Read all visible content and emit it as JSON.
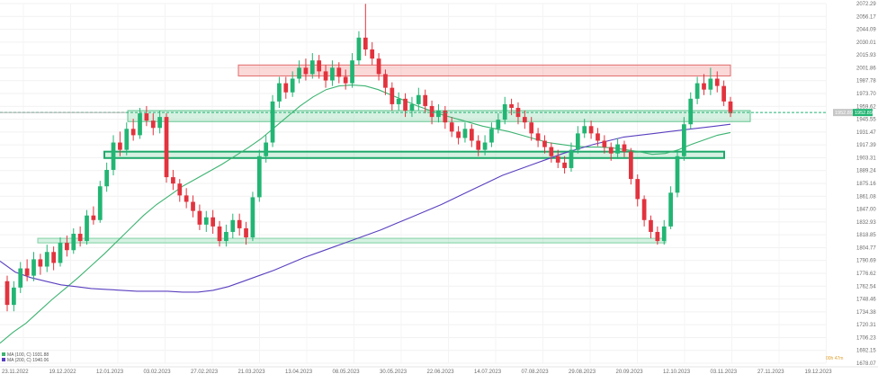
{
  "chart_data": {
    "type": "candlestick",
    "instrument_note": "",
    "y_axis": {
      "labels": [
        "2072.29",
        "2056.17",
        "2044.09",
        "2030.01",
        "2015.93",
        "2001.86",
        "1987.78",
        "1973.70",
        "1959.62",
        "1945.55",
        "1931.47",
        "1917.39",
        "1903.31",
        "1889.24",
        "1875.16",
        "1861.08",
        "1847.00",
        "1832.93",
        "1818.85",
        "1804.77",
        "1790.69",
        "1776.62",
        "1762.54",
        "1748.46",
        "1734.38",
        "1720.31",
        "1706.23",
        "1692.15",
        "1678.07"
      ],
      "min": 1678.07,
      "max": 2072.29
    },
    "x_axis": {
      "labels": [
        "23.11.2022",
        "19.12.2022",
        "12.01.2023",
        "03.02.2023",
        "27.02.2023",
        "21.03.2023",
        "13.04.2023",
        "08.05.2023",
        "30.05.2023",
        "22.06.2023",
        "14.07.2023",
        "07.08.2023",
        "29.08.2023",
        "20.09.2023",
        "12.10.2023",
        "03.11.2023",
        "27.11.2023",
        "19.12.2023"
      ]
    },
    "current_price_label": "1952.89",
    "last_line_label": "1952.89",
    "time_left_label": "00h 47m",
    "legend": [
      "MA (100, C) 1931.88",
      "MA (200, C) 1940.06"
    ],
    "zones": [
      {
        "name": "resistance",
        "from": 1993,
        "to": 2005
      },
      {
        "name": "support-1",
        "from": 1943,
        "to": 1955
      },
      {
        "name": "support-2",
        "from": 1903,
        "to": 1910
      },
      {
        "name": "support-3",
        "from": 1810,
        "to": 1815
      }
    ],
    "series": [
      {
        "name": "MA 100",
        "color": "#3cb371"
      },
      {
        "name": "MA 200",
        "color": "#5a3fbf"
      }
    ],
    "candles": [
      [
        1768,
        1742,
        1774,
        1735
      ],
      [
        1742,
        1761,
        1768,
        1735
      ],
      [
        1761,
        1782,
        1789,
        1755
      ],
      [
        1782,
        1774,
        1792,
        1768
      ],
      [
        1774,
        1792,
        1800,
        1768
      ],
      [
        1792,
        1784,
        1798,
        1775
      ],
      [
        1784,
        1800,
        1808,
        1778
      ],
      [
        1800,
        1788,
        1806,
        1780
      ],
      [
        1788,
        1810,
        1816,
        1784
      ],
      [
        1810,
        1802,
        1818,
        1795
      ],
      [
        1802,
        1820,
        1826,
        1798
      ],
      [
        1820,
        1812,
        1828,
        1806
      ],
      [
        1812,
        1840,
        1846,
        1808
      ],
      [
        1840,
        1835,
        1850,
        1830
      ],
      [
        1835,
        1872,
        1878,
        1832
      ],
      [
        1872,
        1890,
        1898,
        1866
      ],
      [
        1890,
        1920,
        1928,
        1884
      ],
      [
        1920,
        1912,
        1932,
        1905
      ],
      [
        1912,
        1935,
        1942,
        1906
      ],
      [
        1935,
        1928,
        1946,
        1922
      ],
      [
        1928,
        1952,
        1958,
        1924
      ],
      [
        1952,
        1944,
        1960,
        1938
      ],
      [
        1944,
        1936,
        1952,
        1928
      ],
      [
        1936,
        1948,
        1955,
        1930
      ],
      [
        1948,
        1882,
        1952,
        1876
      ],
      [
        1882,
        1875,
        1890,
        1868
      ],
      [
        1875,
        1862,
        1880,
        1855
      ],
      [
        1862,
        1855,
        1870,
        1848
      ],
      [
        1855,
        1845,
        1862,
        1838
      ],
      [
        1845,
        1830,
        1852,
        1824
      ],
      [
        1830,
        1838,
        1845,
        1822
      ],
      [
        1838,
        1828,
        1846,
        1820
      ],
      [
        1828,
        1812,
        1834,
        1806
      ],
      [
        1812,
        1822,
        1830,
        1806
      ],
      [
        1822,
        1835,
        1842,
        1815
      ],
      [
        1835,
        1826,
        1842,
        1818
      ],
      [
        1826,
        1816,
        1833,
        1808
      ],
      [
        1816,
        1860,
        1866,
        1812
      ],
      [
        1860,
        1905,
        1912,
        1855
      ],
      [
        1905,
        1920,
        1928,
        1898
      ],
      [
        1920,
        1965,
        1972,
        1915
      ],
      [
        1965,
        1985,
        1992,
        1958
      ],
      [
        1985,
        1975,
        1992,
        1968
      ],
      [
        1975,
        1990,
        1998,
        1970
      ],
      [
        1990,
        2002,
        2010,
        1985
      ],
      [
        2002,
        1995,
        2012,
        1988
      ],
      [
        1995,
        2010,
        2018,
        1990
      ],
      [
        2010,
        1998,
        2016,
        1990
      ],
      [
        1998,
        1988,
        2005,
        1980
      ],
      [
        1988,
        2002,
        2010,
        1982
      ],
      [
        2002,
        1992,
        2008,
        1985
      ],
      [
        1992,
        1985,
        2000,
        1978
      ],
      [
        1985,
        2010,
        2018,
        1980
      ],
      [
        2010,
        2035,
        2042,
        2005
      ],
      [
        2035,
        2022,
        2072,
        2015
      ],
      [
        2022,
        2012,
        2030,
        2005
      ],
      [
        2012,
        1995,
        2018,
        1988
      ],
      [
        1995,
        1980,
        2000,
        1972
      ],
      [
        1980,
        1962,
        1986,
        1955
      ],
      [
        1962,
        1968,
        1975,
        1955
      ],
      [
        1968,
        1955,
        1974,
        1948
      ],
      [
        1955,
        1962,
        1970,
        1948
      ],
      [
        1962,
        1972,
        1980,
        1955
      ],
      [
        1972,
        1960,
        1978,
        1952
      ],
      [
        1960,
        1948,
        1966,
        1940
      ],
      [
        1948,
        1955,
        1962,
        1942
      ],
      [
        1955,
        1942,
        1960,
        1935
      ],
      [
        1942,
        1932,
        1948,
        1926
      ],
      [
        1932,
        1925,
        1938,
        1918
      ],
      [
        1925,
        1935,
        1942,
        1920
      ],
      [
        1935,
        1922,
        1940,
        1915
      ],
      [
        1922,
        1912,
        1928,
        1905
      ],
      [
        1912,
        1920,
        1928,
        1906
      ],
      [
        1920,
        1935,
        1942,
        1915
      ],
      [
        1935,
        1945,
        1952,
        1930
      ],
      [
        1945,
        1962,
        1970,
        1940
      ],
      [
        1962,
        1958,
        1968,
        1950
      ],
      [
        1958,
        1948,
        1964,
        1940
      ],
      [
        1948,
        1942,
        1955,
        1935
      ],
      [
        1942,
        1930,
        1948,
        1922
      ],
      [
        1930,
        1922,
        1936,
        1915
      ],
      [
        1922,
        1915,
        1928,
        1908
      ],
      [
        1915,
        1905,
        1920,
        1898
      ],
      [
        1905,
        1898,
        1912,
        1892
      ],
      [
        1898,
        1892,
        1905,
        1886
      ],
      [
        1892,
        1912,
        1920,
        1888
      ],
      [
        1912,
        1930,
        1938,
        1908
      ],
      [
        1930,
        1938,
        1946,
        1925
      ],
      [
        1938,
        1930,
        1944,
        1924
      ],
      [
        1930,
        1922,
        1936,
        1916
      ],
      [
        1922,
        1915,
        1928,
        1908
      ],
      [
        1915,
        1908,
        1920,
        1900
      ],
      [
        1908,
        1918,
        1925,
        1902
      ],
      [
        1918,
        1910,
        1922,
        1904
      ],
      [
        1910,
        1880,
        1914,
        1874
      ],
      [
        1880,
        1858,
        1885,
        1850
      ],
      [
        1858,
        1835,
        1862,
        1828
      ],
      [
        1835,
        1822,
        1840,
        1815
      ],
      [
        1822,
        1812,
        1828,
        1808
      ],
      [
        1812,
        1828,
        1835,
        1808
      ],
      [
        1828,
        1865,
        1872,
        1825
      ],
      [
        1865,
        1905,
        1912,
        1860
      ],
      [
        1905,
        1940,
        1948,
        1900
      ],
      [
        1940,
        1968,
        1975,
        1935
      ],
      [
        1968,
        1985,
        1992,
        1962
      ],
      [
        1985,
        1978,
        1995,
        1972
      ],
      [
        1978,
        1990,
        2002,
        1972
      ],
      [
        1990,
        1982,
        1998,
        1975
      ],
      [
        1982,
        1965,
        1988,
        1960
      ],
      [
        1965,
        1952,
        1970,
        1948
      ]
    ],
    "ma100": [
      1700,
      1712,
      1722,
      1735,
      1748,
      1760,
      1772,
      1785,
      1798,
      1812,
      1826,
      1840,
      1852,
      1862,
      1872,
      1880,
      1888,
      1896,
      1905,
      1914,
      1924,
      1936,
      1948,
      1960,
      1970,
      1978,
      1982,
      1983,
      1982,
      1978,
      1972,
      1966,
      1960,
      1955,
      1950,
      1946,
      1942,
      1938,
      1935,
      1932,
      1928,
      1924,
      1920,
      1918,
      1916,
      1915,
      1915,
      1914,
      1912,
      1910,
      1907,
      1908,
      1912,
      1918,
      1923,
      1928,
      1931
    ],
    "ma200": [
      1790,
      1778,
      1772,
      1768,
      1764,
      1762,
      1760,
      1759,
      1758,
      1757,
      1757,
      1757,
      1756,
      1756,
      1758,
      1762,
      1768,
      1774,
      1780,
      1787,
      1794,
      1800,
      1806,
      1812,
      1818,
      1824,
      1831,
      1838,
      1845,
      1852,
      1860,
      1868,
      1876,
      1884,
      1890,
      1896,
      1902,
      1908,
      1913,
      1918,
      1922,
      1926,
      1928,
      1930,
      1932,
      1934,
      1936,
      1938,
      1940
    ]
  }
}
